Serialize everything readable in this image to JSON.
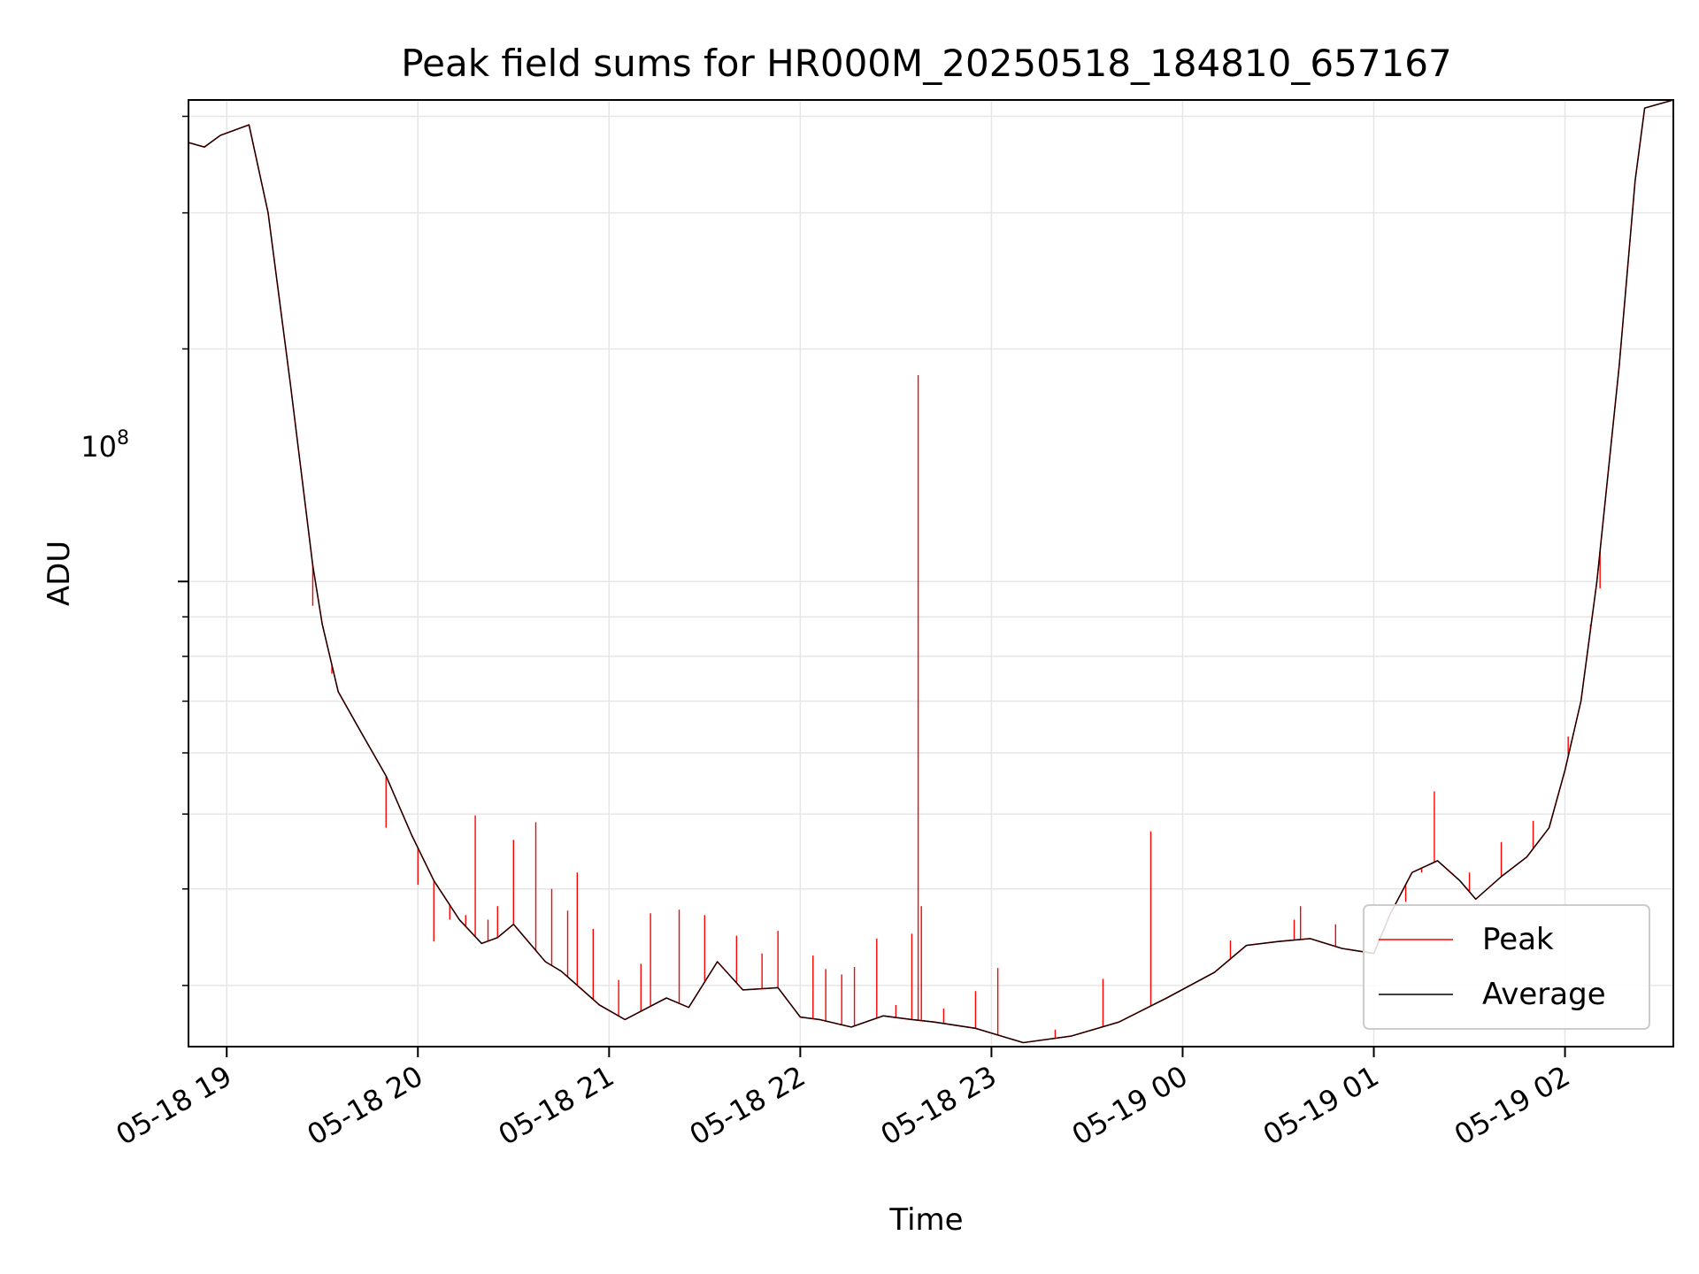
{
  "chart_data": {
    "type": "line",
    "title": "Peak field sums for HR000M_20250518_184810_657167",
    "xlabel": "Time",
    "ylabel": "ADU",
    "y_scale": "log",
    "y_major_tick": {
      "label_base": "10",
      "label_exponent": "8",
      "value": 100000000
    },
    "ylim": [
      25000000,
      420000000
    ],
    "xlim": [
      "2025-05-18 18:48",
      "2025-05-19 02:34"
    ],
    "x_ticks": [
      {
        "value": "2025-05-18 19:00",
        "label": "05-18 19"
      },
      {
        "value": "2025-05-18 20:00",
        "label": "05-18 20"
      },
      {
        "value": "2025-05-18 21:00",
        "label": "05-18 21"
      },
      {
        "value": "2025-05-18 22:00",
        "label": "05-18 22"
      },
      {
        "value": "2025-05-18 23:00",
        "label": "05-18 23"
      },
      {
        "value": "2025-05-19 00:00",
        "label": "05-19 00"
      },
      {
        "value": "2025-05-19 01:00",
        "label": "05-19 01"
      },
      {
        "value": "2025-05-19 02:00",
        "label": "05-19 02"
      }
    ],
    "grid": true,
    "legend_position": "lower right",
    "series": [
      {
        "name": "Peak",
        "color": "#ff0000",
        "points": [
          [
            "2025-05-18 18:48",
            370000000
          ],
          [
            "2025-05-18 18:53",
            365000000
          ],
          [
            "2025-05-18 18:58",
            378000000
          ],
          [
            "2025-05-18 19:07",
            390000000
          ],
          [
            "2025-05-18 19:13",
            300000000
          ],
          [
            "2025-05-18 19:20",
            180000000
          ],
          [
            "2025-05-18 19:27",
            105000000
          ],
          [
            "2025-05-18 19:30",
            88000000
          ],
          [
            "2025-05-18 19:35",
            72000000
          ],
          [
            "2025-05-18 19:42",
            64000000
          ],
          [
            "2025-05-18 19:50",
            56000000
          ],
          [
            "2025-05-18 19:58",
            47000000
          ],
          [
            "2025-05-18 20:05",
            41000000
          ],
          [
            "2025-05-18 20:13",
            36500000
          ],
          [
            "2025-05-18 20:20",
            34000000
          ],
          [
            "2025-05-18 20:25",
            34600000
          ],
          [
            "2025-05-18 20:30",
            36000000
          ],
          [
            "2025-05-18 20:40",
            32200000
          ],
          [
            "2025-05-18 20:45",
            31300000
          ],
          [
            "2025-05-18 20:57",
            28300000
          ],
          [
            "2025-05-18 21:05",
            27100000
          ],
          [
            "2025-05-18 21:18",
            28900000
          ],
          [
            "2025-05-18 21:25",
            28100000
          ],
          [
            "2025-05-18 21:34",
            32200000
          ],
          [
            "2025-05-18 21:42",
            29600000
          ],
          [
            "2025-05-18 21:53",
            29800000
          ],
          [
            "2025-05-18 22:00",
            27300000
          ],
          [
            "2025-05-18 22:06",
            27100000
          ],
          [
            "2025-05-18 22:16",
            26500000
          ],
          [
            "2025-05-18 22:26",
            27400000
          ],
          [
            "2025-05-18 22:35",
            27100000
          ],
          [
            "2025-05-18 22:42",
            26900000
          ],
          [
            "2025-05-18 22:55",
            26400000
          ],
          [
            "2025-05-18 23:10",
            25300000
          ],
          [
            "2025-05-18 23:25",
            25800000
          ],
          [
            "2025-05-18 23:40",
            26900000
          ],
          [
            "2025-05-18 23:55",
            28900000
          ],
          [
            "2025-05-19 00:10",
            31200000
          ],
          [
            "2025-05-19 00:20",
            33800000
          ],
          [
            "2025-05-19 00:30",
            34200000
          ],
          [
            "2025-05-19 00:40",
            34500000
          ],
          [
            "2025-05-19 00:50",
            33500000
          ],
          [
            "2025-05-19 01:00",
            33000000
          ],
          [
            "2025-05-19 01:05",
            37000000
          ],
          [
            "2025-05-19 01:12",
            42000000
          ],
          [
            "2025-05-19 01:20",
            43500000
          ],
          [
            "2025-05-19 01:27",
            41000000
          ],
          [
            "2025-05-19 01:32",
            38800000
          ],
          [
            "2025-05-19 01:40",
            41500000
          ],
          [
            "2025-05-19 01:48",
            44000000
          ],
          [
            "2025-05-19 01:55",
            48000000
          ],
          [
            "2025-05-19 02:00",
            57000000
          ],
          [
            "2025-05-19 02:05",
            70000000
          ],
          [
            "2025-05-19 02:10",
            100000000
          ],
          [
            "2025-05-19 02:17",
            190000000
          ],
          [
            "2025-05-19 02:22",
            330000000
          ],
          [
            "2025-05-19 02:25",
            410000000
          ],
          [
            "2025-05-19 02:34",
            420000000
          ]
        ],
        "spikes": [
          [
            "2025-05-18 19:27",
            93000000
          ],
          [
            "2025-05-18 19:33",
            76000000
          ],
          [
            "2025-05-18 19:40",
            66000000
          ],
          [
            "2025-05-18 19:50",
            48000000
          ],
          [
            "2025-05-18 20:00",
            40500000
          ],
          [
            "2025-05-18 20:05",
            34200000
          ],
          [
            "2025-05-18 20:10",
            36500000
          ],
          [
            "2025-05-18 20:15",
            37000000
          ],
          [
            "2025-05-18 20:18",
            49800000
          ],
          [
            "2025-05-18 20:22",
            36500000
          ],
          [
            "2025-05-18 20:25",
            38000000
          ],
          [
            "2025-05-18 20:30",
            46300000
          ],
          [
            "2025-05-18 20:37",
            48800000
          ],
          [
            "2025-05-18 20:42",
            40000000
          ],
          [
            "2025-05-18 20:47",
            37500000
          ],
          [
            "2025-05-18 20:50",
            42000000
          ],
          [
            "2025-05-18 20:55",
            35500000
          ],
          [
            "2025-05-18 21:03",
            30500000
          ],
          [
            "2025-05-18 21:10",
            32000000
          ],
          [
            "2025-05-18 21:13",
            37200000
          ],
          [
            "2025-05-18 21:22",
            37600000
          ],
          [
            "2025-05-18 21:30",
            37000000
          ],
          [
            "2025-05-18 21:40",
            34800000
          ],
          [
            "2025-05-18 21:48",
            33000000
          ],
          [
            "2025-05-18 21:53",
            35300000
          ],
          [
            "2025-05-18 22:04",
            32800000
          ],
          [
            "2025-05-18 22:08",
            31500000
          ],
          [
            "2025-05-18 22:13",
            31000000
          ],
          [
            "2025-05-18 22:17",
            31700000
          ],
          [
            "2025-05-18 22:24",
            34500000
          ],
          [
            "2025-05-18 22:30",
            28300000
          ],
          [
            "2025-05-18 22:35",
            35000000
          ],
          [
            "2025-05-18 22:37",
            185000000
          ],
          [
            "2025-05-18 22:38",
            38000000
          ],
          [
            "2025-05-18 22:45",
            28000000
          ],
          [
            "2025-05-18 22:55",
            29500000
          ],
          [
            "2025-05-18 23:02",
            31600000
          ],
          [
            "2025-05-18 23:20",
            26300000
          ],
          [
            "2025-05-18 23:35",
            30600000
          ],
          [
            "2025-05-18 23:50",
            47500000
          ],
          [
            "2025-05-19 00:15",
            34300000
          ],
          [
            "2025-05-19 00:35",
            36500000
          ],
          [
            "2025-05-19 00:37",
            38000000
          ],
          [
            "2025-05-19 00:48",
            36000000
          ],
          [
            "2025-05-19 01:10",
            38500000
          ],
          [
            "2025-05-19 01:15",
            42000000
          ],
          [
            "2025-05-19 01:19",
            53500000
          ],
          [
            "2025-05-19 01:30",
            42000000
          ],
          [
            "2025-05-19 01:40",
            46000000
          ],
          [
            "2025-05-19 01:50",
            49000000
          ],
          [
            "2025-05-19 02:01",
            63000000
          ],
          [
            "2025-05-19 02:08",
            88000000
          ],
          [
            "2025-05-19 02:11",
            98000000
          ]
        ]
      },
      {
        "name": "Average",
        "color": "#000000",
        "points": [
          [
            "2025-05-18 18:48",
            370000000
          ],
          [
            "2025-05-18 18:53",
            365000000
          ],
          [
            "2025-05-18 18:58",
            378000000
          ],
          [
            "2025-05-18 19:07",
            390000000
          ],
          [
            "2025-05-18 19:13",
            300000000
          ],
          [
            "2025-05-18 19:20",
            180000000
          ],
          [
            "2025-05-18 19:27",
            105000000
          ],
          [
            "2025-05-18 19:30",
            88000000
          ],
          [
            "2025-05-18 19:35",
            72000000
          ],
          [
            "2025-05-18 19:42",
            64000000
          ],
          [
            "2025-05-18 19:50",
            56000000
          ],
          [
            "2025-05-18 19:58",
            47000000
          ],
          [
            "2025-05-18 20:05",
            41000000
          ],
          [
            "2025-05-18 20:13",
            36500000
          ],
          [
            "2025-05-18 20:20",
            34000000
          ],
          [
            "2025-05-18 20:25",
            34600000
          ],
          [
            "2025-05-18 20:30",
            36000000
          ],
          [
            "2025-05-18 20:40",
            32200000
          ],
          [
            "2025-05-18 20:45",
            31300000
          ],
          [
            "2025-05-18 20:57",
            28300000
          ],
          [
            "2025-05-18 21:05",
            27100000
          ],
          [
            "2025-05-18 21:18",
            28900000
          ],
          [
            "2025-05-18 21:25",
            28100000
          ],
          [
            "2025-05-18 21:34",
            32200000
          ],
          [
            "2025-05-18 21:42",
            29600000
          ],
          [
            "2025-05-18 21:53",
            29800000
          ],
          [
            "2025-05-18 22:00",
            27300000
          ],
          [
            "2025-05-18 22:06",
            27100000
          ],
          [
            "2025-05-18 22:16",
            26500000
          ],
          [
            "2025-05-18 22:26",
            27400000
          ],
          [
            "2025-05-18 22:35",
            27100000
          ],
          [
            "2025-05-18 22:42",
            26900000
          ],
          [
            "2025-05-18 22:55",
            26400000
          ],
          [
            "2025-05-18 23:10",
            25300000
          ],
          [
            "2025-05-18 23:25",
            25800000
          ],
          [
            "2025-05-18 23:40",
            26900000
          ],
          [
            "2025-05-18 23:55",
            28900000
          ],
          [
            "2025-05-19 00:10",
            31200000
          ],
          [
            "2025-05-19 00:20",
            33800000
          ],
          [
            "2025-05-19 00:30",
            34200000
          ],
          [
            "2025-05-19 00:40",
            34500000
          ],
          [
            "2025-05-19 00:50",
            33500000
          ],
          [
            "2025-05-19 01:00",
            33000000
          ],
          [
            "2025-05-19 01:05",
            37000000
          ],
          [
            "2025-05-19 01:12",
            42000000
          ],
          [
            "2025-05-19 01:20",
            43500000
          ],
          [
            "2025-05-19 01:27",
            41000000
          ],
          [
            "2025-05-19 01:32",
            38800000
          ],
          [
            "2025-05-19 01:40",
            41500000
          ],
          [
            "2025-05-19 01:48",
            44000000
          ],
          [
            "2025-05-19 01:55",
            48000000
          ],
          [
            "2025-05-19 02:00",
            57000000
          ],
          [
            "2025-05-19 02:05",
            70000000
          ],
          [
            "2025-05-19 02:10",
            100000000
          ],
          [
            "2025-05-19 02:17",
            190000000
          ],
          [
            "2025-05-19 02:22",
            330000000
          ],
          [
            "2025-05-19 02:25",
            410000000
          ],
          [
            "2025-05-19 02:34",
            420000000
          ]
        ]
      }
    ]
  }
}
